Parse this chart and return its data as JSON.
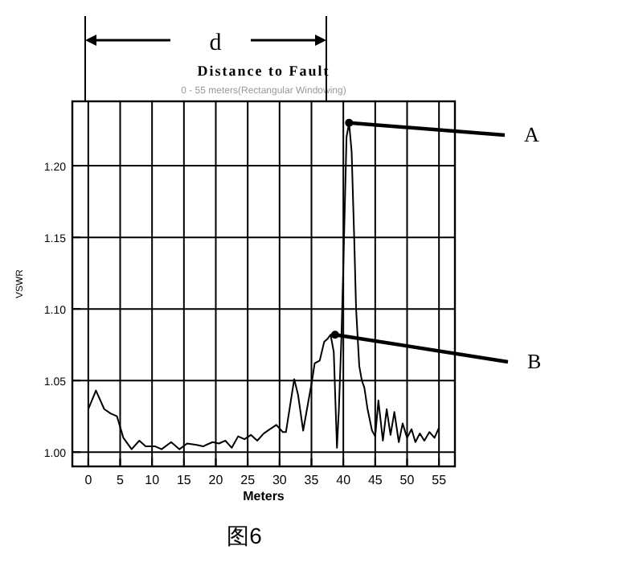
{
  "chart_data": {
    "type": "line",
    "title": "Distance to Fault",
    "subtitle": "0 - 55 meters(Rectangular Windowing)",
    "xlabel": "Meters",
    "ylabel": "VSWR",
    "x": [
      0,
      1.2,
      2.5,
      3.5,
      4.5,
      5.5,
      6.8,
      8,
      9,
      10.5,
      11.5,
      13,
      14.3,
      15.5,
      17,
      18,
      19.5,
      20.5,
      21.5,
      22.5,
      23.5,
      24.5,
      25.5,
      26.5,
      27.5,
      28.5,
      29.5,
      30.5,
      31,
      32.3,
      32.9,
      33.7,
      34.3,
      35.1,
      35.5,
      36.3,
      37,
      37.5,
      38,
      38.5,
      39,
      39.3,
      39.7,
      40,
      40.5,
      40.9,
      41.3,
      41.7,
      42,
      42.5,
      42.9,
      43.3,
      43.8,
      44.5,
      45,
      45.5,
      46.2,
      46.8,
      47.4,
      48,
      48.7,
      49.3,
      50,
      50.7,
      51.3,
      52,
      52.7,
      53.5,
      54.3,
      55
    ],
    "values": [
      1.03,
      1.043,
      1.03,
      1.027,
      1.025,
      1.01,
      1.002,
      1.008,
      1.004,
      1.004,
      1.002,
      1.007,
      1.002,
      1.006,
      1.005,
      1.004,
      1.007,
      1.006,
      1.008,
      1.003,
      1.011,
      1.009,
      1.012,
      1.008,
      1.013,
      1.016,
      1.019,
      1.014,
      1.014,
      1.051,
      1.04,
      1.015,
      1.03,
      1.05,
      1.062,
      1.064,
      1.077,
      1.079,
      1.082,
      1.07,
      1.003,
      1.03,
      1.08,
      1.13,
      1.22,
      1.23,
      1.21,
      1.15,
      1.1,
      1.06,
      1.05,
      1.045,
      1.03,
      1.015,
      1.011,
      1.036,
      1.008,
      1.03,
      1.012,
      1.028,
      1.007,
      1.02,
      1.01,
      1.016,
      1.007,
      1.013,
      1.008,
      1.014,
      1.01,
      1.017
    ],
    "color": "#000000",
    "xlim": [
      -2.5,
      57.5
    ],
    "ylim": [
      0.99,
      1.245
    ],
    "xticks": [
      0,
      5,
      10,
      15,
      20,
      25,
      30,
      35,
      40,
      45,
      50,
      55
    ],
    "yticks": [
      {
        "value": 1,
        "label": "1.00"
      },
      {
        "value": 1.05,
        "label": "1.05"
      },
      {
        "value": 1.1,
        "label": "1.10"
      },
      {
        "value": 1.15,
        "label": "1.15"
      },
      {
        "value": 1.2,
        "label": "1.20"
      }
    ],
    "grid": true,
    "annotations": [
      "d",
      {
        "text": "A",
        "x": 40.9,
        "y": 1.23
      },
      {
        "text": "B",
        "x": 38.7,
        "y": 1.082
      },
      "图6"
    ]
  }
}
